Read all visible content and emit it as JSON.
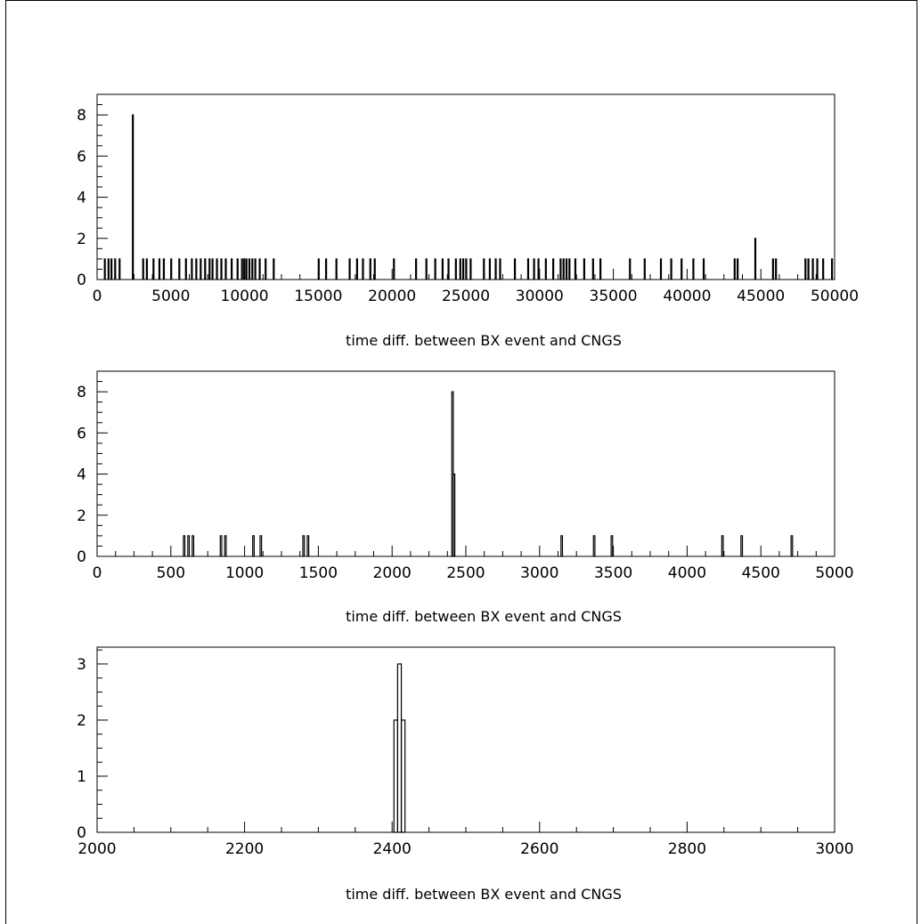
{
  "chart_data": [
    {
      "type": "bar",
      "xlabel": "time diff. between BX event and CNGS",
      "ylabel": "",
      "xlim": [
        0,
        50000
      ],
      "ylim": [
        0,
        9
      ],
      "xticks": [
        "0",
        "5000",
        "10000",
        "15000",
        "20000",
        "25000",
        "30000",
        "35000",
        "40000",
        "45000",
        "50000"
      ],
      "yticks": [
        "0",
        "2",
        "4",
        "6",
        "8"
      ],
      "bins": [
        [
          500,
          1
        ],
        [
          750,
          1
        ],
        [
          950,
          1
        ],
        [
          1200,
          1
        ],
        [
          1500,
          1
        ],
        [
          2400,
          8
        ],
        [
          3100,
          1
        ],
        [
          3350,
          1
        ],
        [
          3800,
          1
        ],
        [
          4200,
          1
        ],
        [
          4500,
          1
        ],
        [
          5000,
          1
        ],
        [
          5550,
          1
        ],
        [
          6000,
          1
        ],
        [
          6400,
          1
        ],
        [
          6700,
          1
        ],
        [
          7000,
          1
        ],
        [
          7300,
          1
        ],
        [
          7600,
          1
        ],
        [
          7800,
          1
        ],
        [
          8100,
          1
        ],
        [
          8400,
          1
        ],
        [
          8700,
          1
        ],
        [
          9100,
          1
        ],
        [
          9500,
          1
        ],
        [
          9800,
          1
        ],
        [
          9950,
          1
        ],
        [
          10100,
          1
        ],
        [
          10300,
          1
        ],
        [
          10500,
          1
        ],
        [
          10700,
          1
        ],
        [
          11000,
          1
        ],
        [
          11400,
          1
        ],
        [
          11950,
          1
        ],
        [
          15000,
          1
        ],
        [
          15500,
          1
        ],
        [
          16200,
          1
        ],
        [
          17100,
          1
        ],
        [
          17600,
          1
        ],
        [
          18000,
          1
        ],
        [
          18500,
          1
        ],
        [
          18800,
          1
        ],
        [
          20100,
          1
        ],
        [
          21600,
          1
        ],
        [
          22300,
          1
        ],
        [
          22900,
          1
        ],
        [
          23400,
          1
        ],
        [
          23800,
          1
        ],
        [
          24300,
          1
        ],
        [
          24600,
          1
        ],
        [
          24800,
          1
        ],
        [
          25000,
          1
        ],
        [
          25300,
          1
        ],
        [
          26200,
          1
        ],
        [
          26600,
          1
        ],
        [
          27000,
          1
        ],
        [
          27300,
          1
        ],
        [
          28300,
          1
        ],
        [
          29200,
          1
        ],
        [
          29600,
          1
        ],
        [
          29900,
          1
        ],
        [
          30400,
          1
        ],
        [
          30900,
          1
        ],
        [
          31400,
          1
        ],
        [
          31600,
          1
        ],
        [
          31800,
          1
        ],
        [
          32000,
          1
        ],
        [
          32400,
          1
        ],
        [
          33000,
          1
        ],
        [
          33600,
          1
        ],
        [
          34100,
          1
        ],
        [
          36100,
          1
        ],
        [
          37100,
          1
        ],
        [
          38200,
          1
        ],
        [
          38900,
          1
        ],
        [
          39600,
          1
        ],
        [
          40400,
          1
        ],
        [
          41100,
          1
        ],
        [
          43200,
          1
        ],
        [
          43400,
          1
        ],
        [
          44600,
          2
        ],
        [
          45800,
          1
        ],
        [
          46000,
          1
        ],
        [
          48000,
          1
        ],
        [
          48200,
          1
        ],
        [
          48500,
          1
        ],
        [
          48800,
          1
        ],
        [
          49200,
          1
        ],
        [
          49800,
          1
        ]
      ]
    },
    {
      "type": "bar",
      "xlabel": "time diff. between BX event and CNGS",
      "ylabel": "",
      "xlim": [
        0,
        5000
      ],
      "ylim": [
        0,
        9
      ],
      "xticks": [
        "0",
        "500",
        "1000",
        "1500",
        "2000",
        "2500",
        "3000",
        "3500",
        "4000",
        "4500",
        "5000"
      ],
      "yticks": [
        "0",
        "2",
        "4",
        "6",
        "8"
      ],
      "bins": [
        [
          590,
          1
        ],
        [
          620,
          1
        ],
        [
          650,
          1
        ],
        [
          840,
          1
        ],
        [
          870,
          1
        ],
        [
          1060,
          1
        ],
        [
          1110,
          1
        ],
        [
          1400,
          1
        ],
        [
          1430,
          1
        ],
        [
          2410,
          8
        ],
        [
          2420,
          4
        ],
        [
          3150,
          1
        ],
        [
          3370,
          1
        ],
        [
          3490,
          1
        ],
        [
          4240,
          1
        ],
        [
          4370,
          1
        ],
        [
          4710,
          1
        ]
      ]
    },
    {
      "type": "bar",
      "xlabel": "time diff. between BX event and CNGS",
      "ylabel": "",
      "xlim": [
        2000,
        3000
      ],
      "ylim": [
        0,
        3.3
      ],
      "xticks": [
        "2000",
        "2200",
        "2400",
        "2600",
        "2800",
        "3000"
      ],
      "yticks": [
        "0",
        "1",
        "2",
        "3"
      ],
      "bins": [
        [
          2405,
          2
        ],
        [
          2410,
          3
        ],
        [
          2415,
          2
        ]
      ]
    }
  ]
}
